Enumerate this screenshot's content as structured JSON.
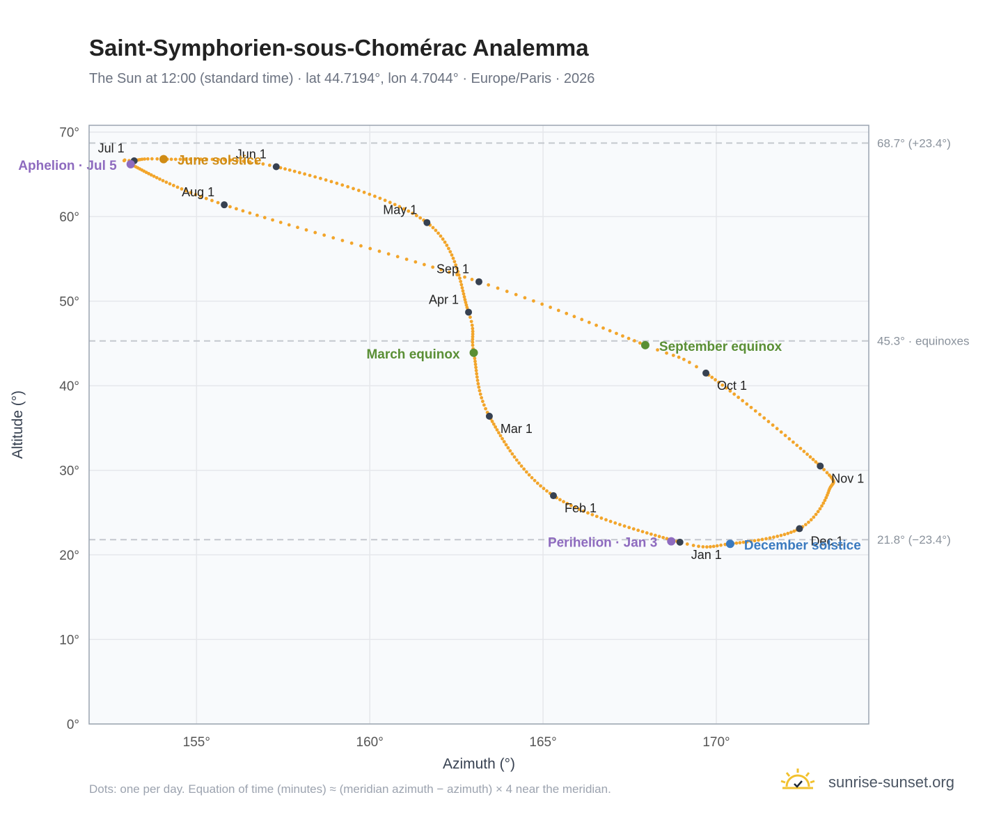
{
  "header": {
    "title": "Saint-Symphorien-sous-Chomérac Analemma",
    "subtitle": "The Sun at 12:00 (standard time) · lat 44.7194°, lon 4.7044° · Europe/Paris · 2026"
  },
  "footer": {
    "note": "Dots: one per day. Equation of time (minutes) ≈ (meridian azimuth − azimuth) × 4 near the meridian.",
    "brand": "sunrise-sunset.org",
    "brand_icon": "sun-logo-icon"
  },
  "colors": {
    "path": "#f2a52b",
    "month_marker": "#374151",
    "solstice_june": "#d08c15",
    "solstice_december": "#3a7abf",
    "equinox": "#5a8f35",
    "apsis": "#8e6bbf",
    "reference_line": "#c4c8ce",
    "plot_background": "#f8fafc",
    "grid": "#e5e7eb",
    "frame": "#9aa4b0"
  },
  "chart_data": {
    "type": "scatter",
    "xlabel": "Azimuth (°)",
    "ylabel": "Altitude (°)",
    "xlim": [
      151.9,
      174.4
    ],
    "ylim": [
      0,
      70.8
    ],
    "x_ticks": [
      155,
      160,
      165,
      170
    ],
    "x_tick_labels": [
      "155°",
      "160°",
      "165°",
      "170°"
    ],
    "y_ticks": [
      0,
      10,
      20,
      30,
      40,
      50,
      60,
      70
    ],
    "y_tick_labels": [
      "0°",
      "10°",
      "20°",
      "30°",
      "40°",
      "50°",
      "60°",
      "70°"
    ],
    "grid": true,
    "reference_lines": [
      {
        "y": 68.7,
        "label": "68.7° (+23.4°)"
      },
      {
        "y": 45.3,
        "label": "45.3° · equinoxes"
      },
      {
        "y": 21.8,
        "label": "21.8° (−23.4°)"
      }
    ],
    "daily_path": {
      "points_per_year": 365,
      "anchors": [
        {
          "day": 0,
          "x": 168.95,
          "y": 21.5
        },
        {
          "day": 31,
          "x": 165.3,
          "y": 27.0
        },
        {
          "day": 59,
          "x": 163.45,
          "y": 36.4
        },
        {
          "day": 78,
          "x": 163.0,
          "y": 43.9
        },
        {
          "day": 90,
          "x": 162.85,
          "y": 48.7
        },
        {
          "day": 120,
          "x": 161.65,
          "y": 59.3
        },
        {
          "day": 151,
          "x": 157.3,
          "y": 65.9
        },
        {
          "day": 171,
          "x": 154.05,
          "y": 66.8
        },
        {
          "day": 181,
          "x": 153.2,
          "y": 66.6
        },
        {
          "day": 185,
          "x": 153.1,
          "y": 66.2
        },
        {
          "day": 212,
          "x": 155.8,
          "y": 61.4
        },
        {
          "day": 243,
          "x": 163.15,
          "y": 52.3
        },
        {
          "day": 265,
          "x": 167.95,
          "y": 44.8
        },
        {
          "day": 273,
          "x": 169.7,
          "y": 41.5
        },
        {
          "day": 304,
          "x": 173.0,
          "y": 30.5
        },
        {
          "day": 319,
          "x": 173.25,
          "y": 27.6
        },
        {
          "day": 334,
          "x": 172.4,
          "y": 23.1
        },
        {
          "day": 354,
          "x": 170.4,
          "y": 21.3
        },
        {
          "day": 365,
          "x": 168.95,
          "y": 21.5
        }
      ]
    },
    "month_markers": [
      {
        "label": "Jan 1",
        "x": 168.95,
        "y": 21.5,
        "anchor": "below-right"
      },
      {
        "label": "Feb 1",
        "x": 165.3,
        "y": 27.0,
        "anchor": "below-right"
      },
      {
        "label": "Mar 1",
        "x": 163.45,
        "y": 36.4,
        "anchor": "below-right"
      },
      {
        "label": "Apr 1",
        "x": 162.85,
        "y": 48.7,
        "anchor": "above-left"
      },
      {
        "label": "May 1",
        "x": 161.65,
        "y": 59.3,
        "anchor": "above-left"
      },
      {
        "label": "Jun 1",
        "x": 157.3,
        "y": 65.9,
        "anchor": "above-left"
      },
      {
        "label": "Jul 1",
        "x": 153.2,
        "y": 66.6,
        "anchor": "above-left"
      },
      {
        "label": "Aug 1",
        "x": 155.8,
        "y": 61.4,
        "anchor": "above-left"
      },
      {
        "label": "Sep 1",
        "x": 163.15,
        "y": 52.3,
        "anchor": "above-left"
      },
      {
        "label": "Oct 1",
        "x": 169.7,
        "y": 41.5,
        "anchor": "below-right"
      },
      {
        "label": "Nov 1",
        "x": 173.0,
        "y": 30.5,
        "anchor": "below-right"
      },
      {
        "label": "Dec 1",
        "x": 172.4,
        "y": 23.1,
        "anchor": "below-right"
      }
    ],
    "events": [
      {
        "label": "June solstice",
        "x": 154.05,
        "y": 66.8,
        "color": "#d08c15",
        "anchor": "right"
      },
      {
        "label": "Aphelion · Jul 5",
        "x": 153.1,
        "y": 66.2,
        "color": "#8e6bbf",
        "anchor": "left"
      },
      {
        "label": "March equinox",
        "x": 163.0,
        "y": 43.9,
        "color": "#5a8f35",
        "anchor": "left"
      },
      {
        "label": "September equinox",
        "x": 167.95,
        "y": 44.8,
        "color": "#5a8f35",
        "anchor": "right"
      },
      {
        "label": "Perihelion · Jan 3",
        "x": 168.7,
        "y": 21.6,
        "color": "#8e6bbf",
        "anchor": "left"
      },
      {
        "label": "December solstice",
        "x": 170.4,
        "y": 21.3,
        "color": "#3a7abf",
        "anchor": "right"
      }
    ]
  }
}
